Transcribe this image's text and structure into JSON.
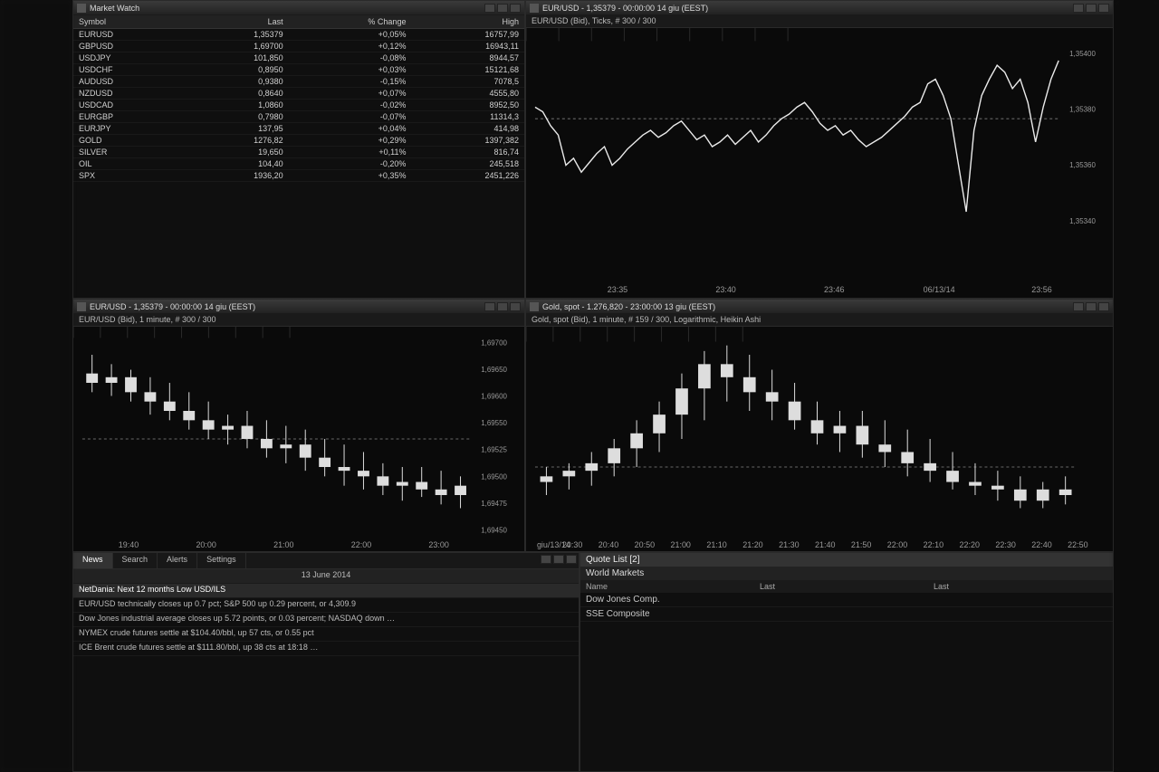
{
  "marketwatch": {
    "title": "Market Watch",
    "columns": [
      "Symbol",
      "Last",
      "% Change",
      "High"
    ],
    "rows": [
      [
        "EURUSD",
        "1,35379",
        "+0,05%",
        "16757,99"
      ],
      [
        "GBPUSD",
        "1,69700",
        "+0,12%",
        "16943,11"
      ],
      [
        "USDJPY",
        "101,850",
        "-0,08%",
        "8944,57"
      ],
      [
        "USDCHF",
        "0,8950",
        "+0,03%",
        "15121,68"
      ],
      [
        "AUDUSD",
        "0,9380",
        "-0,15%",
        "7078,5"
      ],
      [
        "NZDUSD",
        "0,8640",
        "+0,07%",
        "4555,80"
      ],
      [
        "USDCAD",
        "1,0860",
        "-0,02%",
        "8952,50"
      ],
      [
        "EURGBP",
        "0,7980",
        "-0,07%",
        "11314,3"
      ],
      [
        "EURJPY",
        "137,95",
        "+0,04%",
        "414,98"
      ],
      [
        "GOLD",
        "1276,82",
        "+0,29%",
        "1397,382"
      ],
      [
        "SILVER",
        "19,650",
        "+0,11%",
        "816,74"
      ],
      [
        "OIL",
        "104,40",
        "-0,20%",
        "245,518"
      ],
      [
        "SPX",
        "1936,20",
        "+0,35%",
        "2451,226"
      ]
    ]
  },
  "chart_eurusd": {
    "titlebar": "EUR/USD - 1,35379 - 00:00:00   14 giu (EEST)",
    "subtitle": "EUR/USD (Bid), Ticks, # 300 / 300",
    "type": "line",
    "line_color": "#eaeaea",
    "grid_color": "#2a2a2a",
    "bg_color": "#0a0a0a",
    "ref_y": 0.35,
    "ylabels": [
      "1,35400",
      "1,35380",
      "1,35360",
      "1,35340"
    ],
    "xlabels": [
      "23:35",
      "23:40",
      "23:46"
    ],
    "date_label": "06/13/14",
    "date_label2": "23:56",
    "points": [
      0.3,
      0.32,
      0.38,
      0.42,
      0.55,
      0.52,
      0.58,
      0.54,
      0.5,
      0.47,
      0.55,
      0.52,
      0.48,
      0.45,
      0.42,
      0.4,
      0.43,
      0.41,
      0.38,
      0.36,
      0.4,
      0.44,
      0.42,
      0.47,
      0.45,
      0.42,
      0.46,
      0.43,
      0.4,
      0.45,
      0.42,
      0.38,
      0.35,
      0.33,
      0.3,
      0.28,
      0.32,
      0.37,
      0.4,
      0.38,
      0.42,
      0.4,
      0.44,
      0.47,
      0.45,
      0.43,
      0.4,
      0.37,
      0.34,
      0.3,
      0.28,
      0.2,
      0.18,
      0.25,
      0.35,
      0.55,
      0.75,
      0.4,
      0.25,
      0.18,
      0.12,
      0.15,
      0.22,
      0.18,
      0.28,
      0.45,
      0.3,
      0.18,
      0.1
    ]
  },
  "chart_left": {
    "titlebar": "EUR/USD - 1,35379 - 00:00:00   14 giu (EEST)",
    "subtitle": "EUR/USD (Bid), 1 minute, # 300 / 300",
    "type": "candlestick",
    "grid_color": "#2a2a2a",
    "bg_color": "#0a0a0a",
    "ylabels": [
      "1,69700",
      "1,69650",
      "1,69600",
      "1,69550",
      "1,69525",
      "1,69500",
      "1,69475",
      "1,69450"
    ],
    "xlabels": [
      "19:40",
      "20:00",
      "21:00",
      "22:00",
      "23:00"
    ],
    "candles": [
      {
        "o": 0.2,
        "h": 0.1,
        "l": 0.3,
        "c": 0.25
      },
      {
        "o": 0.25,
        "h": 0.15,
        "l": 0.32,
        "c": 0.22
      },
      {
        "o": 0.22,
        "h": 0.18,
        "l": 0.35,
        "c": 0.3
      },
      {
        "o": 0.3,
        "h": 0.22,
        "l": 0.42,
        "c": 0.35
      },
      {
        "o": 0.35,
        "h": 0.25,
        "l": 0.45,
        "c": 0.4
      },
      {
        "o": 0.4,
        "h": 0.3,
        "l": 0.5,
        "c": 0.45
      },
      {
        "o": 0.45,
        "h": 0.35,
        "l": 0.55,
        "c": 0.5
      },
      {
        "o": 0.5,
        "h": 0.42,
        "l": 0.58,
        "c": 0.48
      },
      {
        "o": 0.48,
        "h": 0.4,
        "l": 0.6,
        "c": 0.55
      },
      {
        "o": 0.55,
        "h": 0.45,
        "l": 0.65,
        "c": 0.6
      },
      {
        "o": 0.6,
        "h": 0.48,
        "l": 0.68,
        "c": 0.58
      },
      {
        "o": 0.58,
        "h": 0.5,
        "l": 0.72,
        "c": 0.65
      },
      {
        "o": 0.65,
        "h": 0.55,
        "l": 0.75,
        "c": 0.7
      },
      {
        "o": 0.7,
        "h": 0.58,
        "l": 0.8,
        "c": 0.72
      },
      {
        "o": 0.72,
        "h": 0.62,
        "l": 0.82,
        "c": 0.75
      },
      {
        "o": 0.75,
        "h": 0.68,
        "l": 0.85,
        "c": 0.8
      },
      {
        "o": 0.8,
        "h": 0.7,
        "l": 0.88,
        "c": 0.78
      },
      {
        "o": 0.78,
        "h": 0.7,
        "l": 0.86,
        "c": 0.82
      },
      {
        "o": 0.82,
        "h": 0.72,
        "l": 0.9,
        "c": 0.85
      },
      {
        "o": 0.85,
        "h": 0.75,
        "l": 0.92,
        "c": 0.8
      }
    ]
  },
  "chart_gold": {
    "titlebar": "Gold, spot - 1.276,820 - 23:00:00   13 giu (EEST)",
    "subtitle": "Gold, spot (Bid), 1 minute, # 159 / 300, Logarithmic, Heikin Ashi",
    "type": "candlestick",
    "grid_color": "#2a2a2a",
    "bg_color": "#0a0a0a",
    "xlabels": [
      "20:30",
      "20:40",
      "20:50",
      "21:00",
      "21:10",
      "21:20",
      "21:30",
      "21:40",
      "21:50",
      "22:00",
      "22:10",
      "22:20",
      "22:30",
      "22:40",
      "22:50"
    ],
    "date_left": "giu/13/14",
    "candles": [
      {
        "o": 0.78,
        "h": 0.7,
        "l": 0.85,
        "c": 0.75
      },
      {
        "o": 0.75,
        "h": 0.68,
        "l": 0.82,
        "c": 0.72
      },
      {
        "o": 0.72,
        "h": 0.62,
        "l": 0.8,
        "c": 0.68
      },
      {
        "o": 0.68,
        "h": 0.55,
        "l": 0.75,
        "c": 0.6
      },
      {
        "o": 0.6,
        "h": 0.45,
        "l": 0.7,
        "c": 0.52
      },
      {
        "o": 0.52,
        "h": 0.35,
        "l": 0.62,
        "c": 0.42
      },
      {
        "o": 0.42,
        "h": 0.2,
        "l": 0.55,
        "c": 0.28
      },
      {
        "o": 0.28,
        "h": 0.08,
        "l": 0.45,
        "c": 0.15
      },
      {
        "o": 0.15,
        "h": 0.05,
        "l": 0.35,
        "c": 0.22
      },
      {
        "o": 0.22,
        "h": 0.1,
        "l": 0.4,
        "c": 0.3
      },
      {
        "o": 0.3,
        "h": 0.18,
        "l": 0.45,
        "c": 0.35
      },
      {
        "o": 0.35,
        "h": 0.25,
        "l": 0.5,
        "c": 0.45
      },
      {
        "o": 0.45,
        "h": 0.35,
        "l": 0.58,
        "c": 0.52
      },
      {
        "o": 0.52,
        "h": 0.4,
        "l": 0.62,
        "c": 0.48
      },
      {
        "o": 0.48,
        "h": 0.4,
        "l": 0.65,
        "c": 0.58
      },
      {
        "o": 0.58,
        "h": 0.45,
        "l": 0.7,
        "c": 0.62
      },
      {
        "o": 0.62,
        "h": 0.5,
        "l": 0.75,
        "c": 0.68
      },
      {
        "o": 0.68,
        "h": 0.55,
        "l": 0.78,
        "c": 0.72
      },
      {
        "o": 0.72,
        "h": 0.62,
        "l": 0.82,
        "c": 0.78
      },
      {
        "o": 0.78,
        "h": 0.68,
        "l": 0.85,
        "c": 0.8
      },
      {
        "o": 0.8,
        "h": 0.72,
        "l": 0.88,
        "c": 0.82
      },
      {
        "o": 0.82,
        "h": 0.75,
        "l": 0.92,
        "c": 0.88
      },
      {
        "o": 0.88,
        "h": 0.78,
        "l": 0.92,
        "c": 0.82
      },
      {
        "o": 0.82,
        "h": 0.75,
        "l": 0.9,
        "c": 0.85
      }
    ]
  },
  "news": {
    "panel_title": "News",
    "tabs": [
      "News",
      "Search",
      "Alerts",
      "Settings"
    ],
    "date_header": "13 June 2014",
    "headline1": "NetDania: Next 12 months Low USD/ILS",
    "items": [
      "EUR/USD technically closes up 0.7 pct; S&P 500 up 0.29 percent, or 4,309.9",
      "Dow Jones industrial average closes up 5.72 points, or 0.03 percent; NASDAQ down …",
      "NYMEX crude futures settle at $104.40/bbl, up 57 cts, or 0.55 pct",
      "ICE Brent crude futures settle at $111.80/bbl, up 38 cts at 18:18 …"
    ]
  },
  "quotelist": {
    "header": "Quote List [2]",
    "sub": "World Markets",
    "columns": [
      "Name",
      "Last",
      "Last"
    ],
    "rows": [
      [
        "Dow Jones Comp.",
        "",
        ""
      ],
      [
        "SSE Composite",
        "",
        ""
      ]
    ]
  }
}
